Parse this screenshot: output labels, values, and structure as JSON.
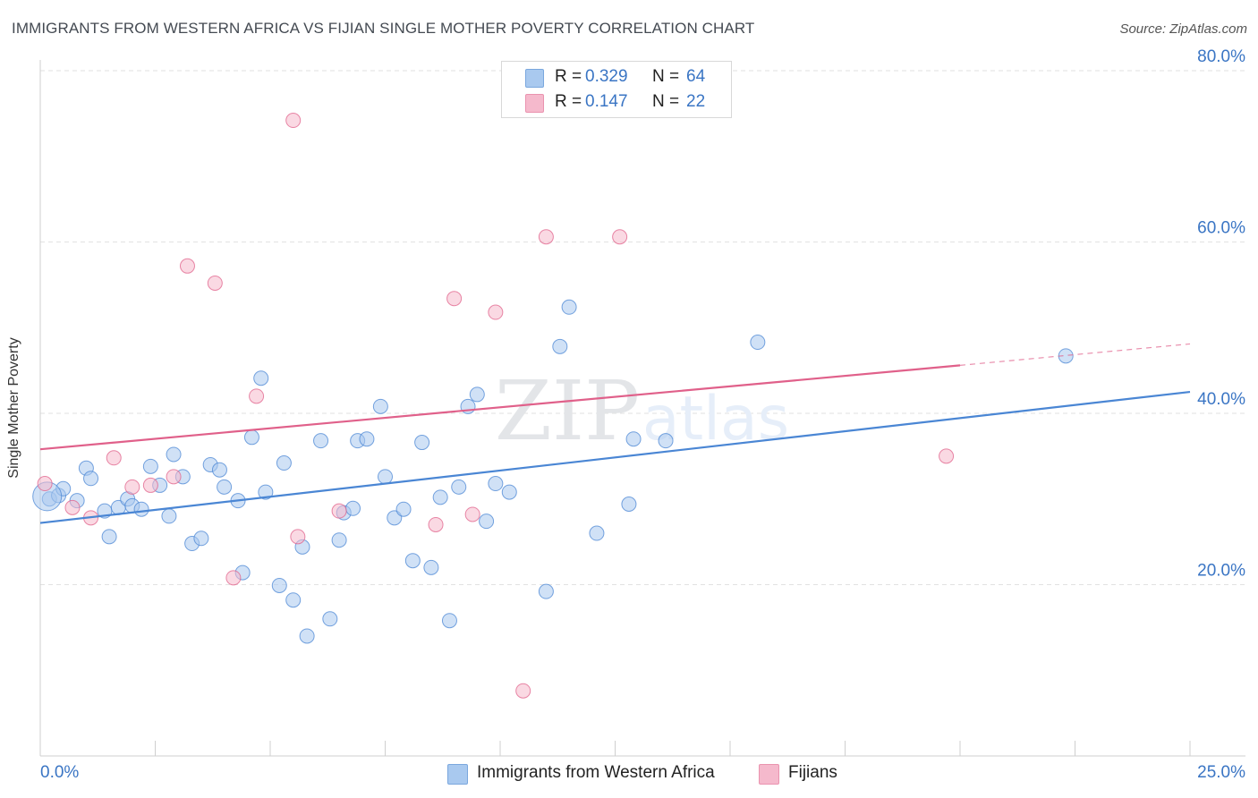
{
  "header": {
    "title": "IMMIGRANTS FROM WESTERN AFRICA VS FIJIAN SINGLE MOTHER POVERTY CORRELATION CHART",
    "source": "Source: ZipAtlas.com"
  },
  "watermark": {
    "zip": "ZIP",
    "atlas": "atlas"
  },
  "correlation_box": [
    {
      "r_label": "R =",
      "r_value": "0.329",
      "n_label": "N =",
      "n_value": "64",
      "color": "#a9c9ef"
    },
    {
      "r_label": "R =",
      "r_value": "0.147",
      "n_label": "N =",
      "n_value": "22",
      "color": "#f5b9cc"
    }
  ],
  "legend": [
    {
      "label": "Immigrants from Western Africa",
      "color": "#a9c9ef"
    },
    {
      "label": "Fijians",
      "color": "#f5b9cc"
    }
  ],
  "chart_data": {
    "type": "scatter",
    "title": "IMMIGRANTS FROM WESTERN AFRICA VS FIJIAN SINGLE MOTHER POVERTY CORRELATION CHART",
    "xlabel": "",
    "ylabel": "Single Mother Poverty",
    "xlim": [
      0,
      25
    ],
    "ylim": [
      0,
      80
    ],
    "x_tick_labels": {
      "left": "0.0%",
      "right": "25.0%"
    },
    "y_ticks": [
      {
        "value": 20,
        "label": "20.0%"
      },
      {
        "value": 40,
        "label": "40.0%"
      },
      {
        "value": 60,
        "label": "60.0%"
      },
      {
        "value": 80,
        "label": "80.0%"
      }
    ],
    "grid": true,
    "series": [
      {
        "name": "Immigrants from Western Africa",
        "color": "#4a86d4",
        "fill": "#a9c9ef",
        "trend": {
          "x0": 0,
          "y0": 27.2,
          "x1": 25,
          "y1": 42.5
        },
        "points": [
          [
            0.2,
            30.0
          ],
          [
            0.4,
            30.4
          ],
          [
            0.5,
            31.2
          ],
          [
            0.8,
            29.8
          ],
          [
            1.0,
            33.6
          ],
          [
            1.1,
            32.4
          ],
          [
            1.4,
            28.6
          ],
          [
            1.5,
            25.6
          ],
          [
            1.7,
            29.0
          ],
          [
            1.9,
            30.0
          ],
          [
            2.0,
            29.2
          ],
          [
            2.2,
            28.8
          ],
          [
            2.4,
            33.8
          ],
          [
            2.6,
            31.6
          ],
          [
            2.8,
            28.0
          ],
          [
            2.9,
            35.2
          ],
          [
            3.1,
            32.6
          ],
          [
            3.3,
            24.8
          ],
          [
            3.5,
            25.4
          ],
          [
            3.7,
            34.0
          ],
          [
            3.9,
            33.4
          ],
          [
            4.0,
            31.4
          ],
          [
            4.3,
            29.8
          ],
          [
            4.4,
            21.4
          ],
          [
            4.6,
            37.2
          ],
          [
            4.8,
            44.1
          ],
          [
            4.9,
            30.8
          ],
          [
            5.2,
            19.9
          ],
          [
            5.3,
            34.2
          ],
          [
            5.5,
            18.2
          ],
          [
            5.7,
            24.4
          ],
          [
            5.8,
            14.0
          ],
          [
            6.1,
            36.8
          ],
          [
            6.3,
            16.0
          ],
          [
            6.5,
            25.2
          ],
          [
            6.6,
            28.4
          ],
          [
            6.8,
            28.9
          ],
          [
            6.9,
            36.8
          ],
          [
            7.1,
            37.0
          ],
          [
            7.4,
            40.8
          ],
          [
            7.5,
            32.6
          ],
          [
            7.7,
            27.8
          ],
          [
            7.9,
            28.8
          ],
          [
            8.1,
            22.8
          ],
          [
            8.3,
            36.6
          ],
          [
            8.5,
            22.0
          ],
          [
            8.7,
            30.2
          ],
          [
            8.9,
            15.8
          ],
          [
            9.1,
            31.4
          ],
          [
            9.3,
            40.8
          ],
          [
            9.5,
            42.2
          ],
          [
            9.7,
            27.4
          ],
          [
            9.9,
            31.8
          ],
          [
            10.2,
            30.8
          ],
          [
            11.0,
            19.2
          ],
          [
            11.3,
            47.8
          ],
          [
            11.5,
            52.4
          ],
          [
            12.1,
            26.0
          ],
          [
            12.8,
            29.4
          ],
          [
            12.9,
            37.0
          ],
          [
            13.6,
            36.8
          ],
          [
            15.6,
            48.3
          ],
          [
            22.3,
            46.7
          ],
          [
            0.15,
            30.3
          ]
        ]
      },
      {
        "name": "Fijians",
        "color": "#e0608a",
        "fill": "#f5b9cc",
        "trend": {
          "x0": 0,
          "y0": 35.8,
          "x1": 20.0,
          "y1": 45.6
        },
        "trend_dashed": {
          "x0": 20.0,
          "y0": 45.6,
          "x1": 25,
          "y1": 48.1
        },
        "points": [
          [
            0.1,
            31.8
          ],
          [
            0.7,
            29.0
          ],
          [
            1.1,
            27.8
          ],
          [
            1.6,
            34.8
          ],
          [
            2.0,
            31.4
          ],
          [
            2.4,
            31.6
          ],
          [
            2.9,
            32.6
          ],
          [
            3.2,
            57.2
          ],
          [
            3.8,
            55.2
          ],
          [
            4.2,
            20.8
          ],
          [
            4.7,
            42.0
          ],
          [
            5.5,
            74.2
          ],
          [
            5.6,
            25.6
          ],
          [
            6.5,
            28.6
          ],
          [
            8.6,
            27.0
          ],
          [
            9.0,
            53.4
          ],
          [
            9.4,
            28.2
          ],
          [
            9.9,
            51.8
          ],
          [
            10.5,
            7.6
          ],
          [
            11.0,
            60.6
          ],
          [
            12.6,
            60.6
          ],
          [
            19.7,
            35.0
          ]
        ]
      }
    ]
  }
}
